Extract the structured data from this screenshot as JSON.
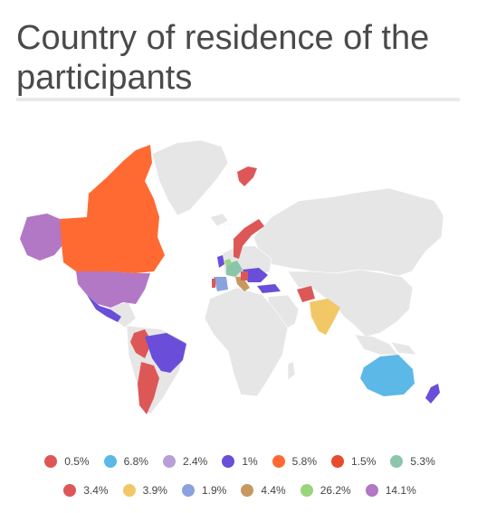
{
  "title": "Country of residence of the participants",
  "colors": {
    "base_land": "#e6e6e6",
    "red": "#de5757",
    "orange": "#ff6a33",
    "purple_light": "#b277c5",
    "lavender": "#b79fd6",
    "blue_purple": "#6a4ed9",
    "sky_blue": "#5cb8e6",
    "yellow": "#f2c766",
    "teal": "#8bc5aa",
    "periwinkle": "#8aa2dd",
    "tan": "#c79960",
    "green": "#98d57b",
    "orange_red": "#e84a2e"
  },
  "legend": [
    [
      {
        "label": "0.5%",
        "color": "#de5757"
      },
      {
        "label": "6.8%",
        "color": "#5cb8e6"
      },
      {
        "label": "2.4%",
        "color": "#b79fd6"
      },
      {
        "label": "1%",
        "color": "#6a4ed9"
      },
      {
        "label": "5.8%",
        "color": "#ff6a33"
      },
      {
        "label": "1.5%",
        "color": "#e84a2e"
      },
      {
        "label": "5.3%",
        "color": "#8bc5aa"
      }
    ],
    [
      {
        "label": "3.4%",
        "color": "#de5757"
      },
      {
        "label": "3.9%",
        "color": "#f2c766"
      },
      {
        "label": "1.9%",
        "color": "#8aa2dd"
      },
      {
        "label": "4.4%",
        "color": "#c79960"
      },
      {
        "label": "26.2%",
        "color": "#98d57b"
      },
      {
        "label": "14.1%",
        "color": "#b277c5"
      }
    ]
  ]
}
